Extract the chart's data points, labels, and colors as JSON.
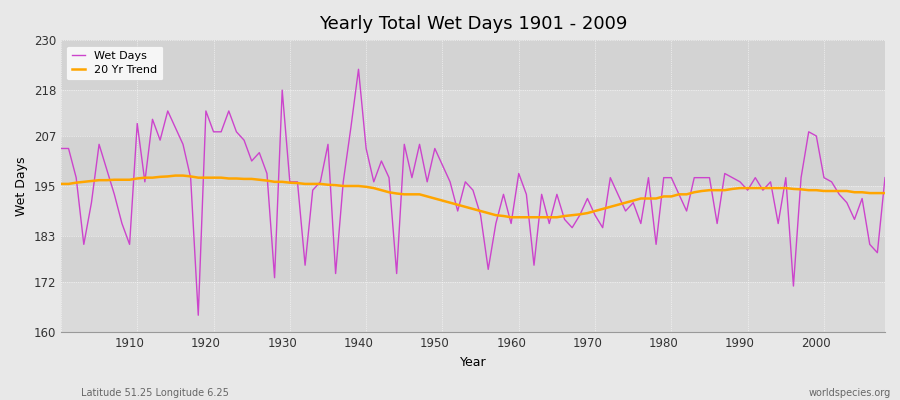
{
  "title": "Yearly Total Wet Days 1901 - 2009",
  "xlabel": "Year",
  "ylabel": "Wet Days",
  "footnote_left": "Latitude 51.25 Longitude 6.25",
  "footnote_right": "worldspecies.org",
  "line_color": "#CC44CC",
  "trend_color": "#FFA500",
  "bg_color": "#E8E8E8",
  "plot_bg_color": "#E0E0E0",
  "band_color_light": "#DCDCDC",
  "band_color_dark": "#D0D0D0",
  "ylim": [
    160,
    230
  ],
  "yticks": [
    160,
    172,
    183,
    195,
    207,
    218,
    230
  ],
  "xlim": [
    1901,
    2009
  ],
  "xtick_step": 10,
  "years": [
    1901,
    1902,
    1903,
    1904,
    1905,
    1906,
    1907,
    1908,
    1909,
    1910,
    1911,
    1912,
    1913,
    1914,
    1915,
    1916,
    1917,
    1918,
    1919,
    1920,
    1921,
    1922,
    1923,
    1924,
    1925,
    1926,
    1927,
    1928,
    1929,
    1930,
    1931,
    1932,
    1933,
    1934,
    1935,
    1936,
    1937,
    1938,
    1939,
    1940,
    1941,
    1942,
    1943,
    1944,
    1945,
    1946,
    1947,
    1948,
    1949,
    1950,
    1951,
    1952,
    1953,
    1954,
    1955,
    1956,
    1957,
    1958,
    1959,
    1960,
    1961,
    1962,
    1963,
    1964,
    1965,
    1966,
    1967,
    1968,
    1969,
    1970,
    1971,
    1972,
    1973,
    1974,
    1975,
    1976,
    1977,
    1978,
    1979,
    1980,
    1981,
    1982,
    1983,
    1984,
    1985,
    1986,
    1987,
    1988,
    1989,
    1990,
    1991,
    1992,
    1993,
    1994,
    1995,
    1996,
    1997,
    1998,
    1999,
    2000,
    2001,
    2002,
    2003,
    2004,
    2005,
    2006,
    2007,
    2008,
    2009
  ],
  "wet_days": [
    204,
    204,
    197,
    181,
    191,
    205,
    199,
    193,
    186,
    181,
    210,
    196,
    211,
    206,
    213,
    209,
    205,
    197,
    164,
    213,
    208,
    208,
    213,
    208,
    206,
    201,
    203,
    198,
    173,
    218,
    196,
    196,
    176,
    194,
    196,
    205,
    174,
    196,
    209,
    223,
    204,
    196,
    201,
    197,
    174,
    205,
    197,
    205,
    196,
    204,
    200,
    196,
    189,
    196,
    194,
    188,
    175,
    186,
    193,
    186,
    198,
    193,
    176,
    193,
    186,
    193,
    187,
    185,
    188,
    192,
    188,
    185,
    197,
    193,
    189,
    191,
    186,
    197,
    181,
    197,
    197,
    193,
    189,
    197,
    197,
    197,
    186,
    198,
    197,
    196,
    194,
    197,
    194,
    196,
    186,
    197,
    171,
    197,
    208,
    207,
    197,
    196,
    193,
    191,
    187,
    192,
    181,
    179,
    197
  ],
  "trend": [
    195.5,
    195.5,
    195.8,
    196.0,
    196.2,
    196.4,
    196.4,
    196.5,
    196.5,
    196.5,
    196.8,
    197.0,
    197.0,
    197.2,
    197.3,
    197.5,
    197.5,
    197.3,
    197.0,
    197.0,
    197.0,
    197.0,
    196.8,
    196.8,
    196.7,
    196.7,
    196.5,
    196.3,
    196.0,
    196.0,
    195.8,
    195.7,
    195.5,
    195.5,
    195.5,
    195.3,
    195.2,
    195.0,
    195.0,
    195.0,
    194.8,
    194.5,
    194.0,
    193.5,
    193.2,
    193.0,
    193.0,
    193.0,
    192.5,
    192.0,
    191.5,
    191.0,
    190.5,
    190.0,
    189.5,
    189.0,
    188.5,
    188.0,
    187.8,
    187.5,
    187.5,
    187.5,
    187.5,
    187.5,
    187.5,
    187.5,
    187.8,
    188.0,
    188.2,
    188.5,
    189.0,
    189.5,
    190.0,
    190.5,
    191.0,
    191.5,
    192.0,
    192.0,
    192.0,
    192.5,
    192.5,
    193.0,
    193.0,
    193.5,
    193.8,
    194.0,
    194.0,
    194.0,
    194.3,
    194.5,
    194.5,
    194.5,
    194.5,
    194.5,
    194.5,
    194.5,
    194.3,
    194.2,
    194.0,
    194.0,
    193.8,
    193.8,
    193.8,
    193.8,
    193.5,
    193.5,
    193.3,
    193.3,
    193.3
  ]
}
